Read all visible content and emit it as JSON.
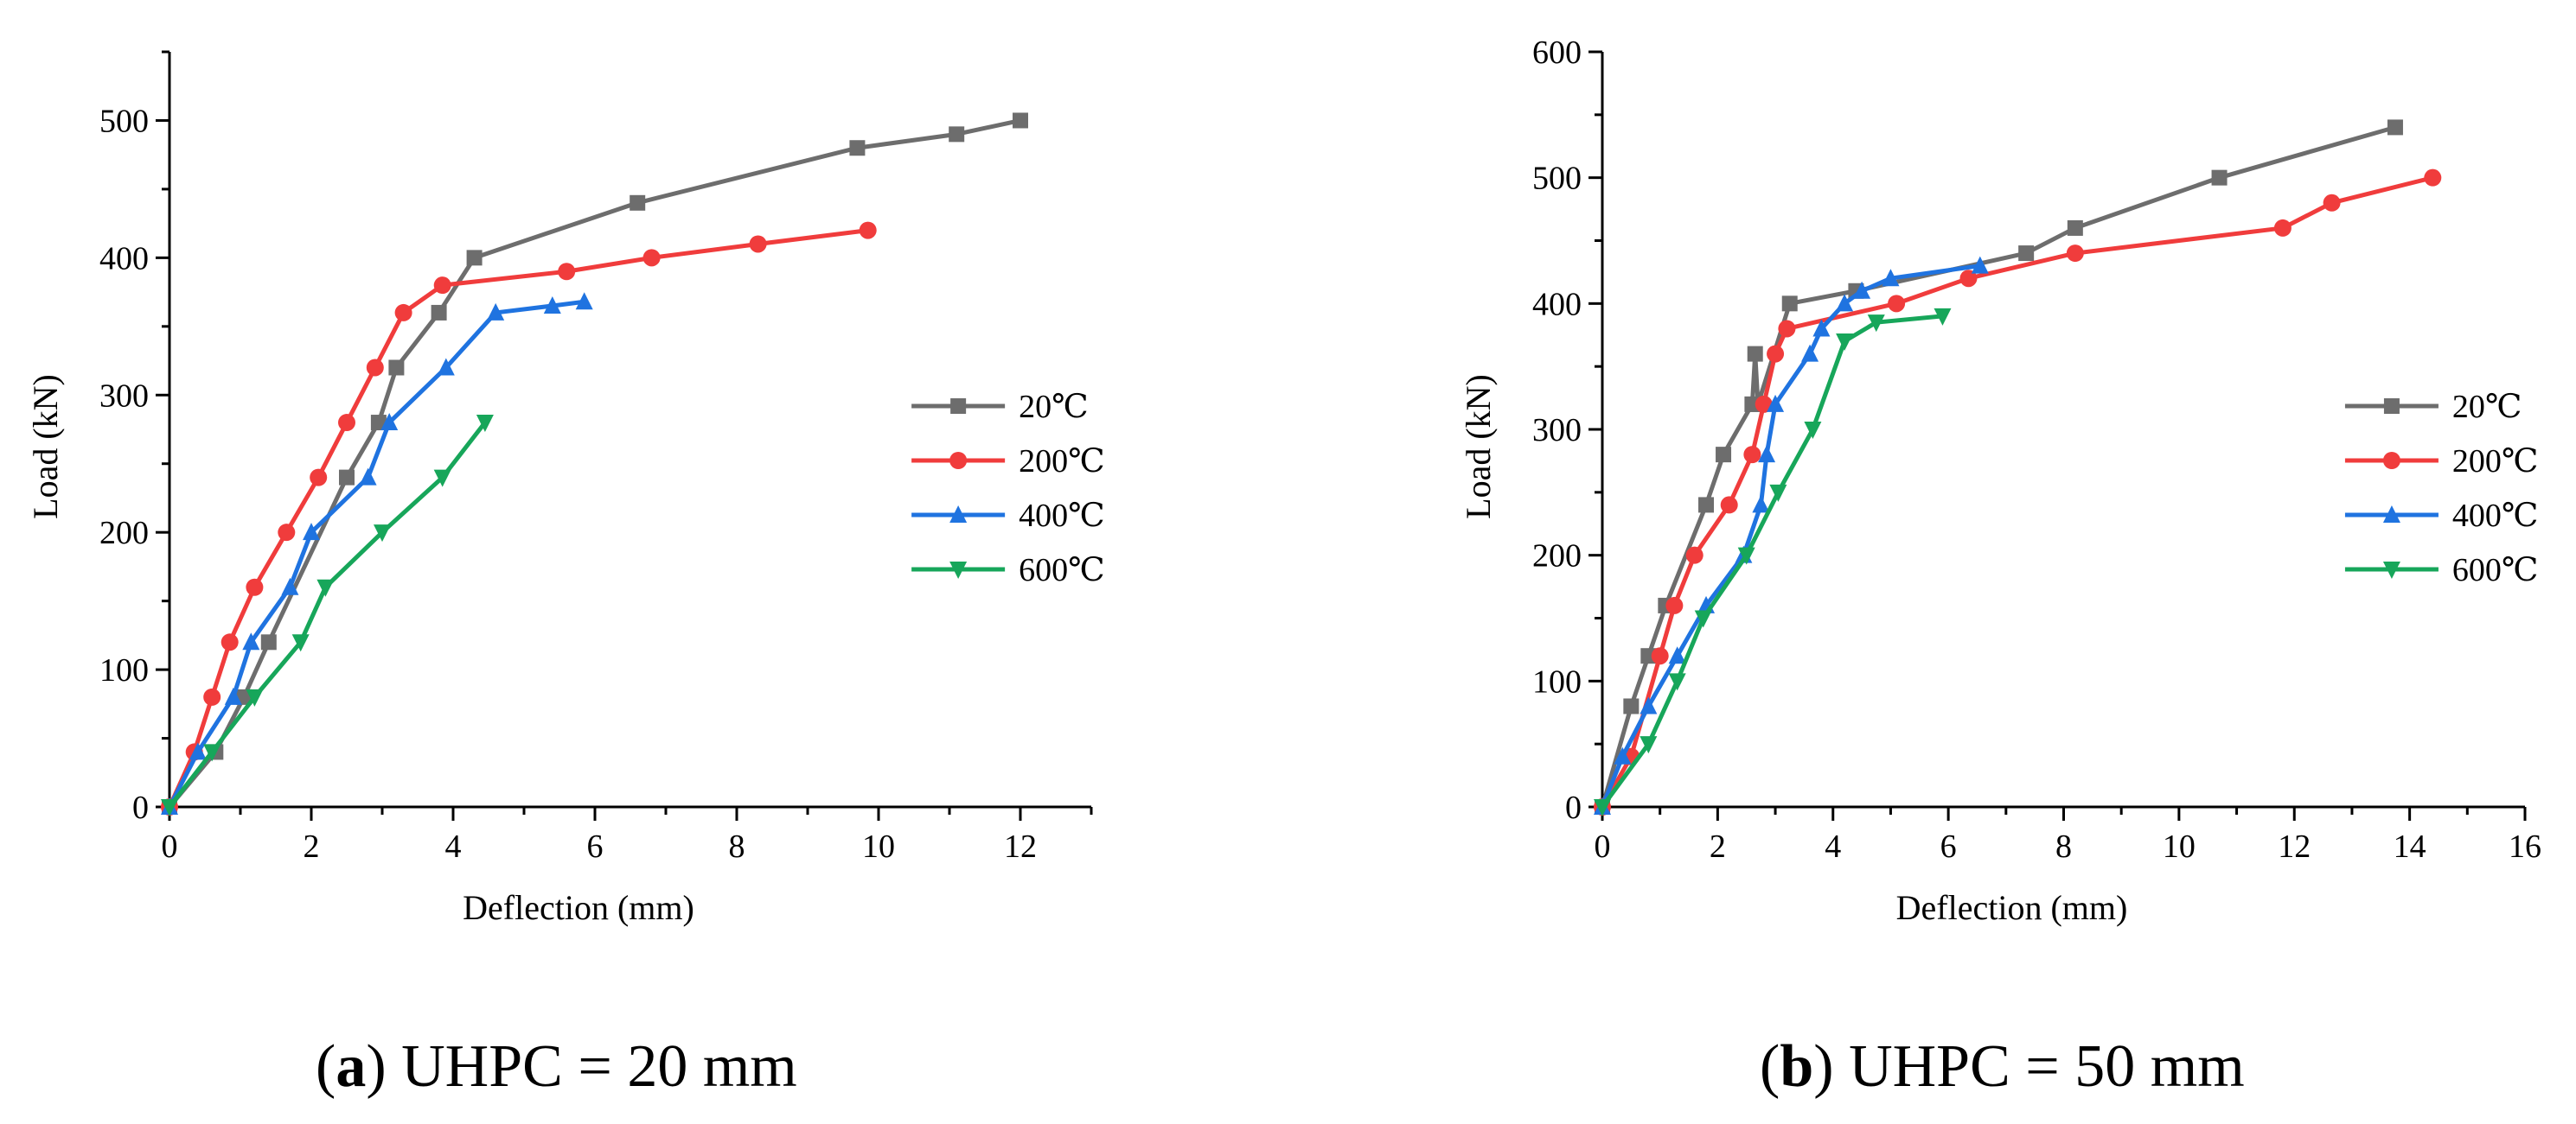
{
  "captions": [
    {
      "label": "a",
      "text": " UHPC = 20 mm"
    },
    {
      "label": "b",
      "text": " UHPC = 50 mm"
    }
  ],
  "series_colors": {
    "20℃": "#6d6d6d",
    "200℃": "#f03c3c",
    "400℃": "#1f73e0",
    "600℃": "#17a65a"
  },
  "series_markers": {
    "20℃": "square",
    "200℃": "circle",
    "400℃": "triangle-up",
    "600℃": "triangle-down"
  },
  "chart_data": [
    {
      "type": "line",
      "title": "",
      "xlabel": "Deflection (mm)",
      "ylabel": "Load (kN)",
      "xlim": [
        0,
        13
      ],
      "ylim": [
        0,
        550
      ],
      "xticks": [
        0,
        2,
        4,
        6,
        8,
        10,
        12
      ],
      "yticks": [
        0,
        100,
        200,
        300,
        400,
        500
      ],
      "legend_position": "right-center",
      "series": [
        {
          "name": "20℃",
          "x": [
            0,
            0.65,
            1.05,
            1.4,
            2.5,
            2.95,
            3.2,
            3.8,
            4.3,
            6.6,
            9.7,
            11.1,
            12.0
          ],
          "y": [
            0,
            40,
            80,
            120,
            240,
            280,
            320,
            360,
            400,
            440,
            480,
            490,
            500
          ]
        },
        {
          "name": "200℃",
          "x": [
            0,
            0.35,
            0.6,
            0.85,
            1.2,
            1.65,
            2.1,
            2.5,
            2.9,
            3.3,
            3.85,
            5.6,
            6.8,
            8.3,
            9.85
          ],
          "y": [
            0,
            40,
            80,
            120,
            160,
            200,
            240,
            280,
            320,
            360,
            380,
            390,
            400,
            410,
            420
          ]
        },
        {
          "name": "400℃",
          "x": [
            0,
            0.4,
            0.9,
            1.15,
            1.7,
            2.0,
            2.8,
            3.1,
            3.9,
            4.6,
            5.4,
            5.85
          ],
          "y": [
            0,
            40,
            80,
            120,
            160,
            200,
            240,
            280,
            320,
            360,
            365,
            368
          ]
        },
        {
          "name": "600℃",
          "x": [
            0,
            0.6,
            1.2,
            1.85,
            2.2,
            3.0,
            3.85,
            4.45
          ],
          "y": [
            0,
            40,
            80,
            120,
            160,
            200,
            240,
            280
          ]
        }
      ]
    },
    {
      "type": "line",
      "title": "",
      "xlabel": "Deflection (mm)",
      "ylabel": "Load (kN)",
      "xlim": [
        0,
        16
      ],
      "ylim": [
        0,
        600
      ],
      "xticks": [
        0,
        2,
        4,
        6,
        8,
        10,
        12,
        14,
        16
      ],
      "yticks": [
        0,
        100,
        200,
        300,
        400,
        500,
        600
      ],
      "legend_position": "right-center",
      "series": [
        {
          "name": "20℃",
          "x": [
            0,
            0.5,
            0.8,
            1.1,
            1.8,
            2.1,
            2.6,
            2.65,
            2.7,
            3.25,
            4.4,
            7.35,
            8.2,
            10.7,
            13.75
          ],
          "y": [
            0,
            80,
            120,
            160,
            240,
            280,
            320,
            360,
            320,
            400,
            410,
            440,
            460,
            500,
            540
          ]
        },
        {
          "name": "200℃",
          "x": [
            0,
            0.5,
            1.0,
            1.25,
            1.6,
            2.2,
            2.6,
            2.8,
            3.0,
            3.2,
            5.1,
            6.35,
            8.2,
            11.8,
            12.65,
            14.4
          ],
          "y": [
            0,
            40,
            120,
            160,
            200,
            240,
            280,
            320,
            360,
            380,
            400,
            420,
            440,
            460,
            480,
            500
          ]
        },
        {
          "name": "400℃",
          "x": [
            0,
            0.35,
            0.8,
            1.3,
            1.8,
            2.45,
            2.75,
            2.85,
            3.0,
            3.6,
            3.8,
            4.2,
            4.5,
            5.0,
            6.55
          ],
          "y": [
            0,
            40,
            80,
            120,
            160,
            200,
            240,
            280,
            320,
            360,
            380,
            400,
            410,
            420,
            430
          ]
        },
        {
          "name": "600℃",
          "x": [
            0,
            0.8,
            1.3,
            1.75,
            2.5,
            3.05,
            3.65,
            4.2,
            4.75,
            5.9
          ],
          "y": [
            0,
            50,
            100,
            150,
            200,
            250,
            300,
            370,
            385,
            390
          ]
        }
      ]
    }
  ]
}
